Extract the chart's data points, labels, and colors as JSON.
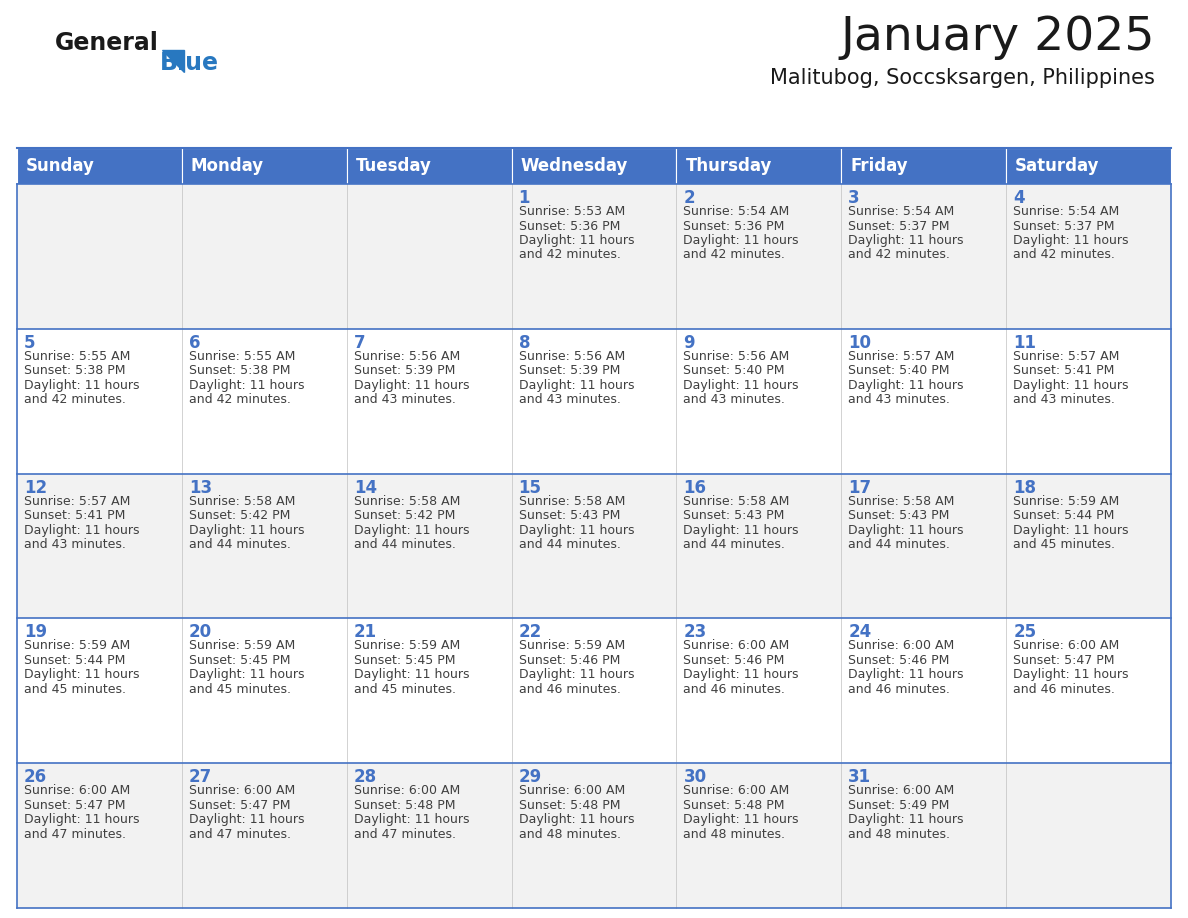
{
  "title": "January 2025",
  "subtitle": "Malitubog, Soccsksargen, Philippines",
  "days_of_week": [
    "Sunday",
    "Monday",
    "Tuesday",
    "Wednesday",
    "Thursday",
    "Friday",
    "Saturday"
  ],
  "header_bg": "#4472C4",
  "header_text": "#FFFFFF",
  "row_bg_odd": "#F2F2F2",
  "row_bg_even": "#FFFFFF",
  "separator_color": "#4472C4",
  "day_number_color": "#4472C4",
  "cell_text_color": "#404040",
  "logo_general_color": "#1a1a1a",
  "logo_blue_color": "#2878C0",
  "logo_triangle_color": "#2878C0",
  "calendar": [
    [
      {
        "day": "",
        "sunrise": "",
        "sunset": "",
        "daylight": ""
      },
      {
        "day": "",
        "sunrise": "",
        "sunset": "",
        "daylight": ""
      },
      {
        "day": "",
        "sunrise": "",
        "sunset": "",
        "daylight": ""
      },
      {
        "day": "1",
        "sunrise": "5:53 AM",
        "sunset": "5:36 PM",
        "daylight": "11 hours and 42 minutes."
      },
      {
        "day": "2",
        "sunrise": "5:54 AM",
        "sunset": "5:36 PM",
        "daylight": "11 hours and 42 minutes."
      },
      {
        "day": "3",
        "sunrise": "5:54 AM",
        "sunset": "5:37 PM",
        "daylight": "11 hours and 42 minutes."
      },
      {
        "day": "4",
        "sunrise": "5:54 AM",
        "sunset": "5:37 PM",
        "daylight": "11 hours and 42 minutes."
      }
    ],
    [
      {
        "day": "5",
        "sunrise": "5:55 AM",
        "sunset": "5:38 PM",
        "daylight": "11 hours and 42 minutes."
      },
      {
        "day": "6",
        "sunrise": "5:55 AM",
        "sunset": "5:38 PM",
        "daylight": "11 hours and 42 minutes."
      },
      {
        "day": "7",
        "sunrise": "5:56 AM",
        "sunset": "5:39 PM",
        "daylight": "11 hours and 43 minutes."
      },
      {
        "day": "8",
        "sunrise": "5:56 AM",
        "sunset": "5:39 PM",
        "daylight": "11 hours and 43 minutes."
      },
      {
        "day": "9",
        "sunrise": "5:56 AM",
        "sunset": "5:40 PM",
        "daylight": "11 hours and 43 minutes."
      },
      {
        "day": "10",
        "sunrise": "5:57 AM",
        "sunset": "5:40 PM",
        "daylight": "11 hours and 43 minutes."
      },
      {
        "day": "11",
        "sunrise": "5:57 AM",
        "sunset": "5:41 PM",
        "daylight": "11 hours and 43 minutes."
      }
    ],
    [
      {
        "day": "12",
        "sunrise": "5:57 AM",
        "sunset": "5:41 PM",
        "daylight": "11 hours and 43 minutes."
      },
      {
        "day": "13",
        "sunrise": "5:58 AM",
        "sunset": "5:42 PM",
        "daylight": "11 hours and 44 minutes."
      },
      {
        "day": "14",
        "sunrise": "5:58 AM",
        "sunset": "5:42 PM",
        "daylight": "11 hours and 44 minutes."
      },
      {
        "day": "15",
        "sunrise": "5:58 AM",
        "sunset": "5:43 PM",
        "daylight": "11 hours and 44 minutes."
      },
      {
        "day": "16",
        "sunrise": "5:58 AM",
        "sunset": "5:43 PM",
        "daylight": "11 hours and 44 minutes."
      },
      {
        "day": "17",
        "sunrise": "5:58 AM",
        "sunset": "5:43 PM",
        "daylight": "11 hours and 44 minutes."
      },
      {
        "day": "18",
        "sunrise": "5:59 AM",
        "sunset": "5:44 PM",
        "daylight": "11 hours and 45 minutes."
      }
    ],
    [
      {
        "day": "19",
        "sunrise": "5:59 AM",
        "sunset": "5:44 PM",
        "daylight": "11 hours and 45 minutes."
      },
      {
        "day": "20",
        "sunrise": "5:59 AM",
        "sunset": "5:45 PM",
        "daylight": "11 hours and 45 minutes."
      },
      {
        "day": "21",
        "sunrise": "5:59 AM",
        "sunset": "5:45 PM",
        "daylight": "11 hours and 45 minutes."
      },
      {
        "day": "22",
        "sunrise": "5:59 AM",
        "sunset": "5:46 PM",
        "daylight": "11 hours and 46 minutes."
      },
      {
        "day": "23",
        "sunrise": "6:00 AM",
        "sunset": "5:46 PM",
        "daylight": "11 hours and 46 minutes."
      },
      {
        "day": "24",
        "sunrise": "6:00 AM",
        "sunset": "5:46 PM",
        "daylight": "11 hours and 46 minutes."
      },
      {
        "day": "25",
        "sunrise": "6:00 AM",
        "sunset": "5:47 PM",
        "daylight": "11 hours and 46 minutes."
      }
    ],
    [
      {
        "day": "26",
        "sunrise": "6:00 AM",
        "sunset": "5:47 PM",
        "daylight": "11 hours and 47 minutes."
      },
      {
        "day": "27",
        "sunrise": "6:00 AM",
        "sunset": "5:47 PM",
        "daylight": "11 hours and 47 minutes."
      },
      {
        "day": "28",
        "sunrise": "6:00 AM",
        "sunset": "5:48 PM",
        "daylight": "11 hours and 47 minutes."
      },
      {
        "day": "29",
        "sunrise": "6:00 AM",
        "sunset": "5:48 PM",
        "daylight": "11 hours and 48 minutes."
      },
      {
        "day": "30",
        "sunrise": "6:00 AM",
        "sunset": "5:48 PM",
        "daylight": "11 hours and 48 minutes."
      },
      {
        "day": "31",
        "sunrise": "6:00 AM",
        "sunset": "5:49 PM",
        "daylight": "11 hours and 48 minutes."
      },
      {
        "day": "",
        "sunrise": "",
        "sunset": "",
        "daylight": ""
      }
    ]
  ]
}
